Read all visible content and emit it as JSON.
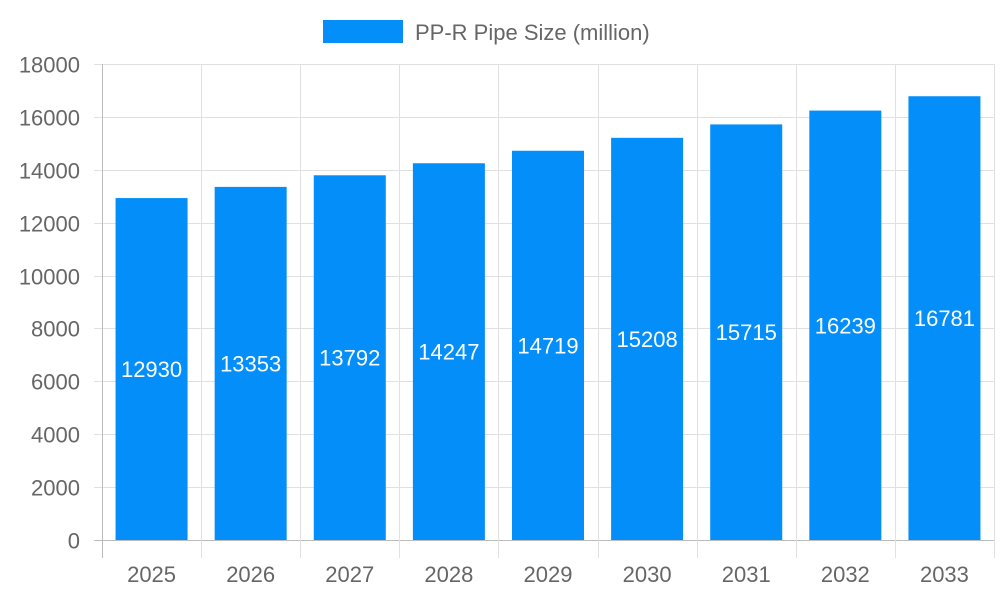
{
  "chart_data": {
    "type": "bar",
    "categories": [
      "2025",
      "2026",
      "2027",
      "2028",
      "2029",
      "2030",
      "2031",
      "2032",
      "2033"
    ],
    "series": [
      {
        "name": "PP-R Pipe Size (million)",
        "values": [
          12930,
          13353,
          13792,
          14247,
          14719,
          15208,
          15715,
          16239,
          16781
        ],
        "color": "#038efa"
      }
    ],
    "ylim": [
      0,
      18000
    ],
    "yticks": [
      0,
      2000,
      4000,
      6000,
      8000,
      10000,
      12000,
      14000,
      16000,
      18000
    ],
    "grid": true,
    "legend": "top",
    "data_labels": true
  }
}
